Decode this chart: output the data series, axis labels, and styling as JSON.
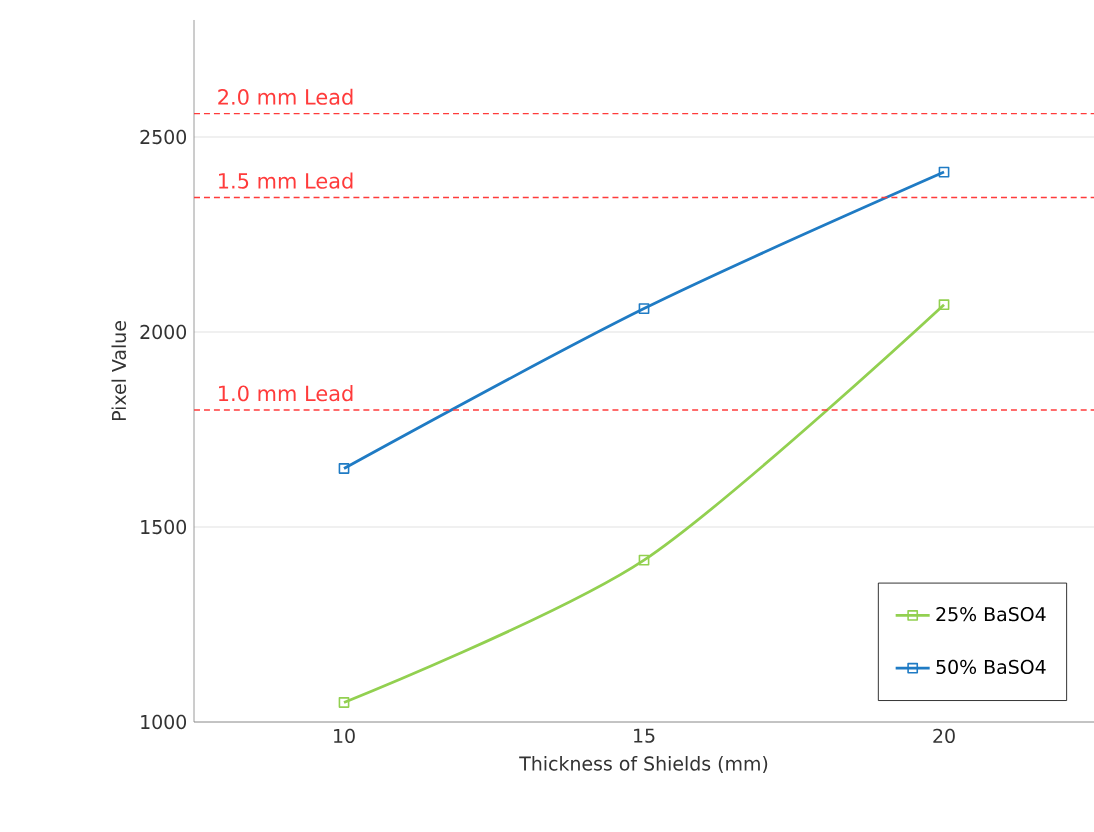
{
  "chart_data": {
    "type": "line",
    "xlabel": "Thickness of Shields (mm)",
    "ylabel": "Pixel Value",
    "x": [
      10,
      15,
      20
    ],
    "xlim": [
      7.5,
      22.5
    ],
    "xticks": [
      10,
      15,
      20
    ],
    "ylim": [
      1000,
      2800
    ],
    "yticks": [
      1000,
      1500,
      2000,
      2500
    ],
    "series": [
      {
        "name": "25% BaSO4",
        "color": "#92d050",
        "values": [
          1050,
          1415,
          2070
        ]
      },
      {
        "name": "50% BaSO4",
        "color": "#1f7bc4",
        "values": [
          1650,
          2060,
          2410
        ]
      }
    ],
    "ref_lines": [
      {
        "axis": "y",
        "value": 2560,
        "label": "2.0 mm Lead",
        "color": "#ff3b3b",
        "line_style": "dashed"
      },
      {
        "axis": "y",
        "value": 2345,
        "label": "1.5 mm Lead",
        "color": "#ff3b3b",
        "line_style": "dashed"
      },
      {
        "axis": "y",
        "value": 1800,
        "label": "1.0 mm Lead",
        "color": "#ff3b3b",
        "line_style": "dashed"
      }
    ],
    "grid": "y",
    "legend": "bottom right",
    "marker": "square",
    "line_style": "solid"
  }
}
